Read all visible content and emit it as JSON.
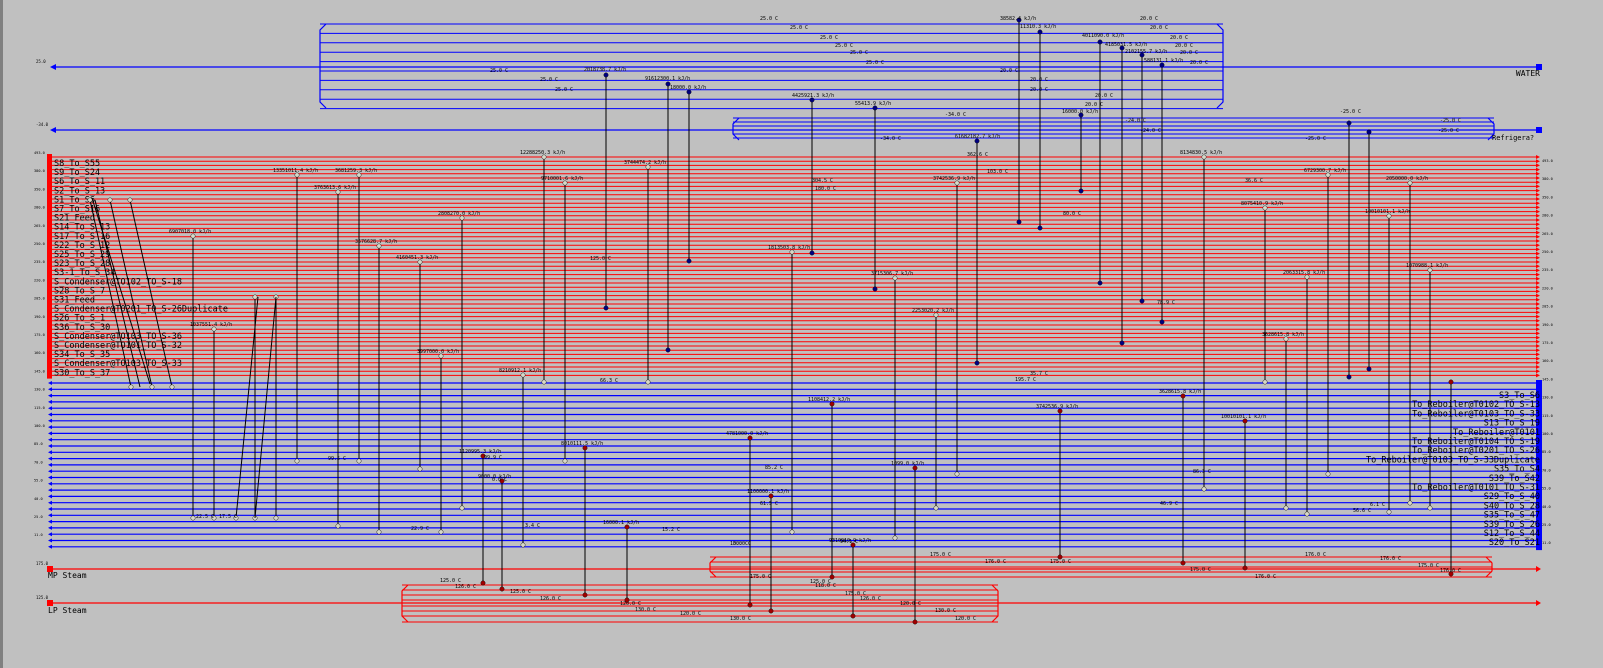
{
  "utilities": {
    "water": {
      "name": "WATER",
      "axis": "25.0",
      "color": "#0000ff"
    },
    "refrigerant": {
      "name": "Refrigera?",
      "axis": "-34.0",
      "color": "#0000ff"
    },
    "mp_steam": {
      "name": "MP Steam",
      "axis": "175.0",
      "color": "#ff0000"
    },
    "lp_steam": {
      "name": "LP Steam",
      "axis": "125.0",
      "color": "#ff0000"
    }
  },
  "hot_streams": [
    "S8_To_S55",
    "S9_To_S24",
    "S6_To_S_11",
    "S2_To_S_13",
    "S1_To_S6",
    "S7_To_S16",
    "S21_Feed",
    "S14_To_S_13",
    "S17_To_S_16",
    "S22_To_S_12",
    "S25_To_S_29",
    "S23_To_S_28",
    "S3-1_To_S_34",
    "S_Condenser@TO102_TO_S-18",
    "S28_To_S_7",
    "S31_Feed",
    "S_Condenser@T0201_T0_S-26Duplicate",
    "S26_To_S_1",
    "S36_To_S_30",
    "S_Condenser@TO103_TO_S-36",
    "S_Condenser@TO101_TO_S-32",
    "S34_To_S_35",
    "S_Condenser@TO103_TO_S-33",
    "S30_To_S_37"
  ],
  "cold_streams": [
    "S3_To_S6",
    "To_Reboiler@T0102_TO_S-13",
    "To_Reboiler@T0103_TO_S-33",
    "S13_To_S_19",
    "To_Reboiler@T0101",
    "To_Reboiler@T0104_TO_S-19",
    "To_Reboiler@T0201_TO_S-26",
    "To_Reboiler@T0103_TO_S-33Duplicate",
    "S35_To_S4",
    "S39_To_S42",
    "To_Reboiler@T0101_TO_S-31",
    "S29_To_S_40",
    "S40_To_S_28",
    "S35_To_S_47",
    "S39_To_S_26",
    "S12_To_S_44",
    "S20_To_S21"
  ],
  "scale_left": [
    "493.0",
    "380.0",
    "350.0",
    "280.0",
    "265.0",
    "250.0",
    "235.0",
    "220.0",
    "205.0",
    "190.0",
    "175.0",
    "160.0",
    "145.0",
    "130.0",
    "115.0",
    "100.0",
    "85.0",
    "70.0",
    "55.0",
    "40.0",
    "25.0",
    "11.0"
  ],
  "scale_right": [
    "493.0",
    "380.0",
    "350.0",
    "280.0",
    "265.0",
    "250.0",
    "235.0",
    "220.0",
    "205.0",
    "190.0",
    "175.0",
    "160.0",
    "145.0",
    "130.0",
    "115.0",
    "100.0",
    "85.0",
    "70.0",
    "55.0",
    "40.0",
    "25.0",
    "11.0"
  ],
  "exchanger_labels": [
    "38582.4 kJ/h",
    "11310.3 kJ/h",
    "4011090.0 kJ/h",
    "4185031.5 kJ/h",
    "2102155.7 kJ/h",
    "588131.1 kJ/h",
    "2018738.7 kJ/h",
    "91612300.1 kJ/h",
    "18000.0 kJ/h",
    "4425921.3 kJ/h",
    "55413.9 kJ/h",
    "61682182.7 kJ/h",
    "16000.0 kJ/h",
    "8134830.5 kJ/h",
    "12288250.3 kJ/h",
    "3744474.2 kJ/h",
    "9710001.6 kJ/h",
    "13351011.4 kJ/h",
    "3763613.6 kJ/h",
    "3681259.3 kJ/h",
    "3576628.7 kJ/h",
    "4160451.3 kJ/h",
    "3997000.0 kJ/h",
    "2808270.0 kJ/h",
    "8210912.1 kJ/h",
    "6729300.7 kJ/h",
    "1813503.8 kJ/h",
    "3715306.7 kJ/h",
    "2253020.2 kJ/h",
    "8075410.9 kJ/h",
    "2050000.0 kJ/h",
    "10010101.1 kJ/h",
    "1070988.1 kJ/h",
    "3742536.9 kJ/h",
    "2063315.8 kJ/h",
    "3628615.8 kJ/h",
    "1108412.2 kJ/h",
    "1120995.3 kJ/h",
    "4781000.0 kJ/h",
    "1100000.1 kJ/h",
    "8010111.5 kJ/h",
    "9000.0 kJ/h",
    "16000.1 kJ/h",
    "9310910.9 kJ/h"
  ],
  "temperature_labels": {
    "water_side": [
      "25.0 C",
      "20.0 C"
    ],
    "refrigerant_side": [
      "-34.0 C",
      "-25.0 C",
      "-24.0 C"
    ],
    "process": [
      "125.0 C",
      "115.0 C",
      "180.0 C",
      "304.5 C",
      "362.6 C",
      "103.0 C",
      "80.0 C",
      "78.9 C",
      "36.6 C",
      "35.7 C",
      "195.7 C",
      "85.2 C",
      "30.0 C",
      "22.9 C",
      "22.5 C",
      "17.5 C",
      "3.4 C",
      "0.0 C",
      "6.1 C",
      "46.9 C",
      "99.5 C",
      "99.9 C",
      "86.3 C",
      "15.2 C",
      "66.3 C",
      "10.0 C",
      "94.1 C",
      "61.5 C",
      "56.6 C",
      "118.0 C"
    ],
    "steam_side": [
      "175.0 C",
      "176.0 C",
      "125.0 C",
      "126.0 C",
      "120.0 C",
      "130.0 C"
    ]
  }
}
